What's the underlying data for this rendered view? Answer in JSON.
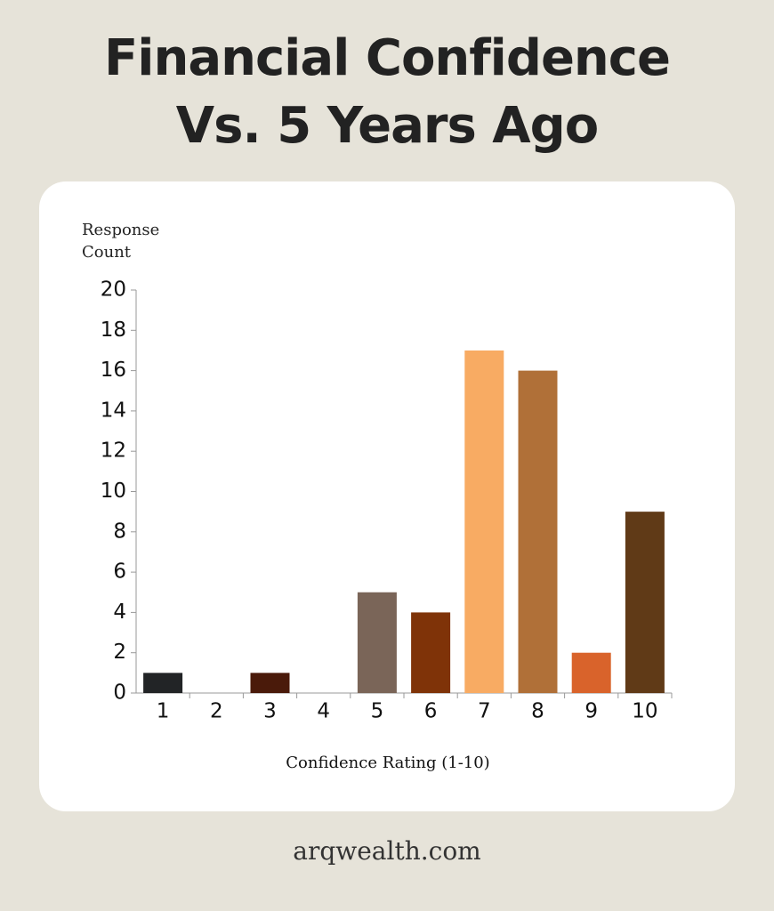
{
  "chart_data": {
    "type": "bar",
    "title": "Financial Confidence Vs. 5 Years Ago",
    "y_label": "Response Count",
    "x_label": "Confidence Rating (1-10)",
    "footer": "arqwealth.com",
    "categories": [
      "1",
      "2",
      "3",
      "4",
      "5",
      "6",
      "7",
      "8",
      "9",
      "10"
    ],
    "values": [
      1,
      0,
      1,
      0,
      5,
      4,
      17,
      16,
      2,
      9
    ],
    "colors": [
      "#222426",
      null,
      "#4a1a0a",
      null,
      "#7a6558",
      "#7f3308",
      "#f8ab63",
      "#b07038",
      "#d9632b",
      "#603a17"
    ],
    "ylim": [
      0,
      20
    ],
    "yticks": [
      0,
      2,
      4,
      6,
      8,
      10,
      12,
      14,
      16,
      18,
      20
    ],
    "grid": false
  }
}
